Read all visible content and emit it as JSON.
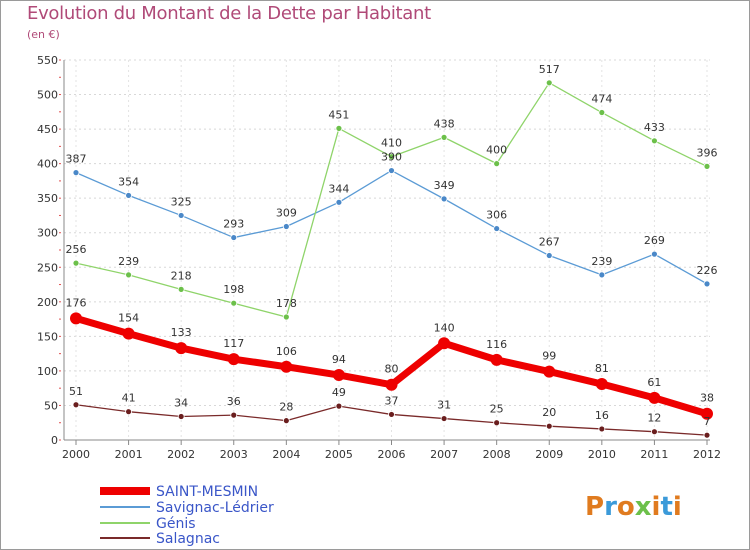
{
  "title": "Evolution du Montant de la Dette par Habitant",
  "subtitle": "(en €)",
  "logo": {
    "text": "Proxiti",
    "colors": [
      "#e07b1f",
      "#3b9ad9",
      "#e07b1f",
      "#6cc04a",
      "#e07b1f",
      "#3b9ad9",
      "#e07b1f"
    ]
  },
  "chart_data": {
    "type": "line",
    "x": [
      "2000",
      "2001",
      "2002",
      "2003",
      "2004",
      "2005",
      "2006",
      "2007",
      "2008",
      "2009",
      "2010",
      "2011",
      "2012"
    ],
    "ylim": [
      0,
      550
    ],
    "yticks": [
      0,
      50,
      100,
      150,
      200,
      250,
      300,
      350,
      400,
      450,
      500,
      550
    ],
    "grid": true,
    "legend": "bottom-left",
    "series": [
      {
        "name": "SAINT-MESMIN",
        "color": "#ee0000",
        "marker": "#ee0000",
        "width": 7,
        "radius": 6,
        "values": [
          176,
          154,
          133,
          117,
          106,
          94,
          80,
          140,
          116,
          99,
          81,
          61,
          38
        ]
      },
      {
        "name": "Savignac-Lédrier",
        "color": "#5b9bd5",
        "marker": "#4a88c8",
        "width": 1.3,
        "radius": 3,
        "values": [
          387,
          354,
          325,
          293,
          309,
          344,
          390,
          349,
          306,
          267,
          239,
          269,
          226
        ]
      },
      {
        "name": "Génis",
        "color": "#8fd46a",
        "marker": "#6cc04a",
        "width": 1.3,
        "radius": 3,
        "values": [
          256,
          239,
          218,
          198,
          178,
          451,
          410,
          438,
          400,
          517,
          474,
          433,
          396
        ]
      },
      {
        "name": "Salagnac",
        "color": "#7a2a2a",
        "marker": "#6a1e1e",
        "width": 1.3,
        "radius": 3,
        "values": [
          51,
          41,
          34,
          36,
          28,
          49,
          37,
          31,
          25,
          20,
          16,
          12,
          7
        ]
      }
    ]
  }
}
